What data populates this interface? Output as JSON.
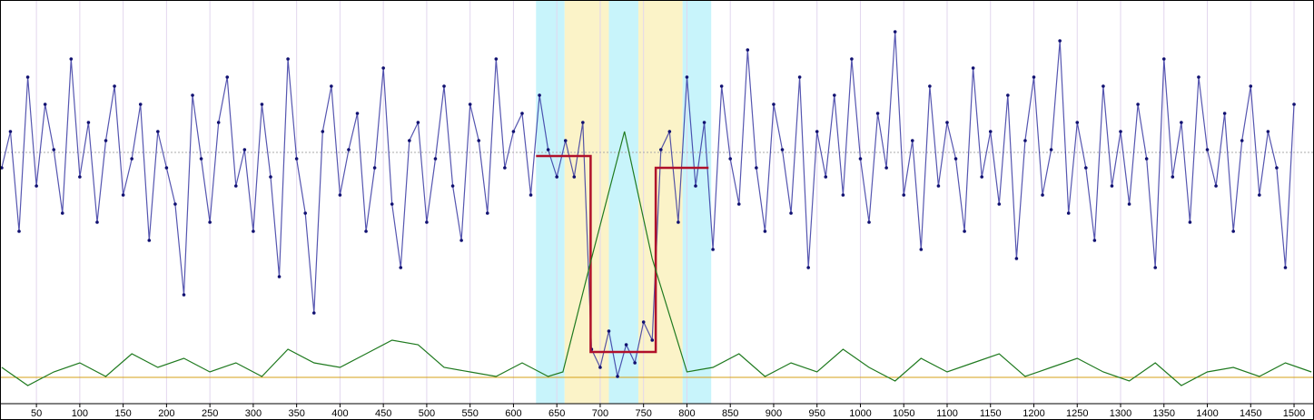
{
  "chart_data": {
    "type": "line",
    "xlim": [
      8,
      1523
    ],
    "ylim": [
      0,
      445
    ],
    "xticks": [
      50,
      100,
      150,
      200,
      250,
      300,
      350,
      400,
      450,
      500,
      550,
      600,
      650,
      700,
      750,
      800,
      850,
      900,
      950,
      1000,
      1050,
      1100,
      1150,
      1200,
      1250,
      1300,
      1350,
      1400,
      1450,
      1500
    ],
    "grid": true,
    "bands": [
      {
        "from": 626,
        "to": 659,
        "color": "#c8f4fb"
      },
      {
        "from": 659,
        "to": 710,
        "color": "#fbf3c8"
      },
      {
        "from": 710,
        "to": 744,
        "color": "#c8f4fb"
      },
      {
        "from": 744,
        "to": 795,
        "color": "#fbf3c8"
      },
      {
        "from": 795,
        "to": 828,
        "color": "#c8f4fb"
      }
    ],
    "hlines": [
      {
        "value": 277,
        "color": "#aaaaaa"
      },
      {
        "value": 29,
        "color": "#d4a017"
      }
    ],
    "series": [
      {
        "color": "#2a2a9c",
        "markers": true,
        "x": [
          10,
          20,
          30,
          40,
          50,
          60,
          70,
          80,
          90,
          100,
          110,
          120,
          130,
          140,
          150,
          160,
          170,
          180,
          190,
          200,
          210,
          220,
          230,
          240,
          250,
          260,
          270,
          280,
          290,
          300,
          310,
          320,
          330,
          340,
          350,
          360,
          370,
          380,
          390,
          400,
          410,
          420,
          430,
          440,
          450,
          460,
          470,
          480,
          490,
          500,
          510,
          520,
          530,
          540,
          550,
          560,
          570,
          580,
          590,
          600,
          610,
          620,
          630,
          640,
          650,
          660,
          670,
          680,
          690,
          700,
          710,
          720,
          730,
          740,
          750,
          760,
          770,
          780,
          790,
          800,
          810,
          820,
          830,
          840,
          850,
          860,
          870,
          880,
          890,
          900,
          910,
          920,
          930,
          940,
          950,
          960,
          970,
          980,
          990,
          1000,
          1010,
          1020,
          1030,
          1040,
          1050,
          1060,
          1070,
          1080,
          1090,
          1100,
          1110,
          1120,
          1130,
          1140,
          1150,
          1160,
          1170,
          1180,
          1190,
          1200,
          1210,
          1220,
          1230,
          1240,
          1250,
          1260,
          1270,
          1280,
          1290,
          1300,
          1310,
          1320,
          1330,
          1340,
          1350,
          1360,
          1370,
          1380,
          1390,
          1400,
          1410,
          1420,
          1430,
          1440,
          1450,
          1460,
          1470,
          1480,
          1490,
          1500
        ],
        "values": [
          260,
          300,
          190,
          360,
          240,
          330,
          280,
          210,
          380,
          250,
          310,
          200,
          290,
          350,
          230,
          270,
          330,
          180,
          300,
          260,
          220,
          120,
          340,
          270,
          200,
          310,
          360,
          240,
          280,
          190,
          330,
          250,
          140,
          380,
          270,
          210,
          100,
          300,
          350,
          230,
          280,
          320,
          190,
          260,
          370,
          220,
          150,
          290,
          310,
          200,
          270,
          350,
          240,
          180,
          330,
          290,
          210,
          380,
          260,
          300,
          320,
          230,
          340,
          280,
          250,
          290,
          250,
          310,
          60,
          40,
          80,
          30,
          65,
          45,
          90,
          70,
          280,
          300,
          200,
          360,
          240,
          310,
          170,
          350,
          270,
          220,
          390,
          260,
          190,
          330,
          280,
          210,
          360,
          150,
          300,
          250,
          340,
          230,
          380,
          270,
          200,
          320,
          260,
          410,
          230,
          290,
          170,
          350,
          240,
          310,
          270,
          190,
          370,
          250,
          300,
          220,
          340,
          160,
          290,
          360,
          230,
          280,
          400,
          210,
          310,
          260,
          180,
          350,
          240,
          300,
          220,
          330,
          270,
          150,
          380,
          250,
          310,
          200,
          360,
          280,
          240,
          320,
          190,
          290,
          350,
          230,
          300,
          260,
          150,
          330
        ]
      },
      {
        "color": "#b0102a",
        "width": 2.5,
        "x": [
          626,
          689,
          689,
          764,
          764,
          825
        ],
        "values": [
          273,
          273,
          57,
          57,
          260,
          260
        ]
      },
      {
        "color": "#1f7a1f",
        "x": [
          10,
          40,
          70,
          100,
          130,
          160,
          190,
          220,
          250,
          280,
          310,
          340,
          370,
          400,
          430,
          460,
          490,
          520,
          550,
          580,
          610,
          640,
          657,
          690,
          728,
          760,
          800,
          830,
          860,
          890,
          920,
          950,
          980,
          1010,
          1040,
          1070,
          1100,
          1130,
          1160,
          1190,
          1220,
          1250,
          1280,
          1310,
          1340,
          1370,
          1400,
          1430,
          1460,
          1490,
          1520
        ],
        "values": [
          40,
          20,
          35,
          45,
          30,
          55,
          40,
          50,
          35,
          45,
          30,
          60,
          45,
          40,
          55,
          70,
          65,
          40,
          35,
          30,
          45,
          30,
          35,
          160,
          300,
          160,
          35,
          40,
          55,
          30,
          45,
          35,
          60,
          40,
          25,
          50,
          35,
          45,
          55,
          30,
          40,
          50,
          35,
          25,
          45,
          20,
          35,
          40,
          30,
          45,
          35
        ]
      }
    ]
  }
}
